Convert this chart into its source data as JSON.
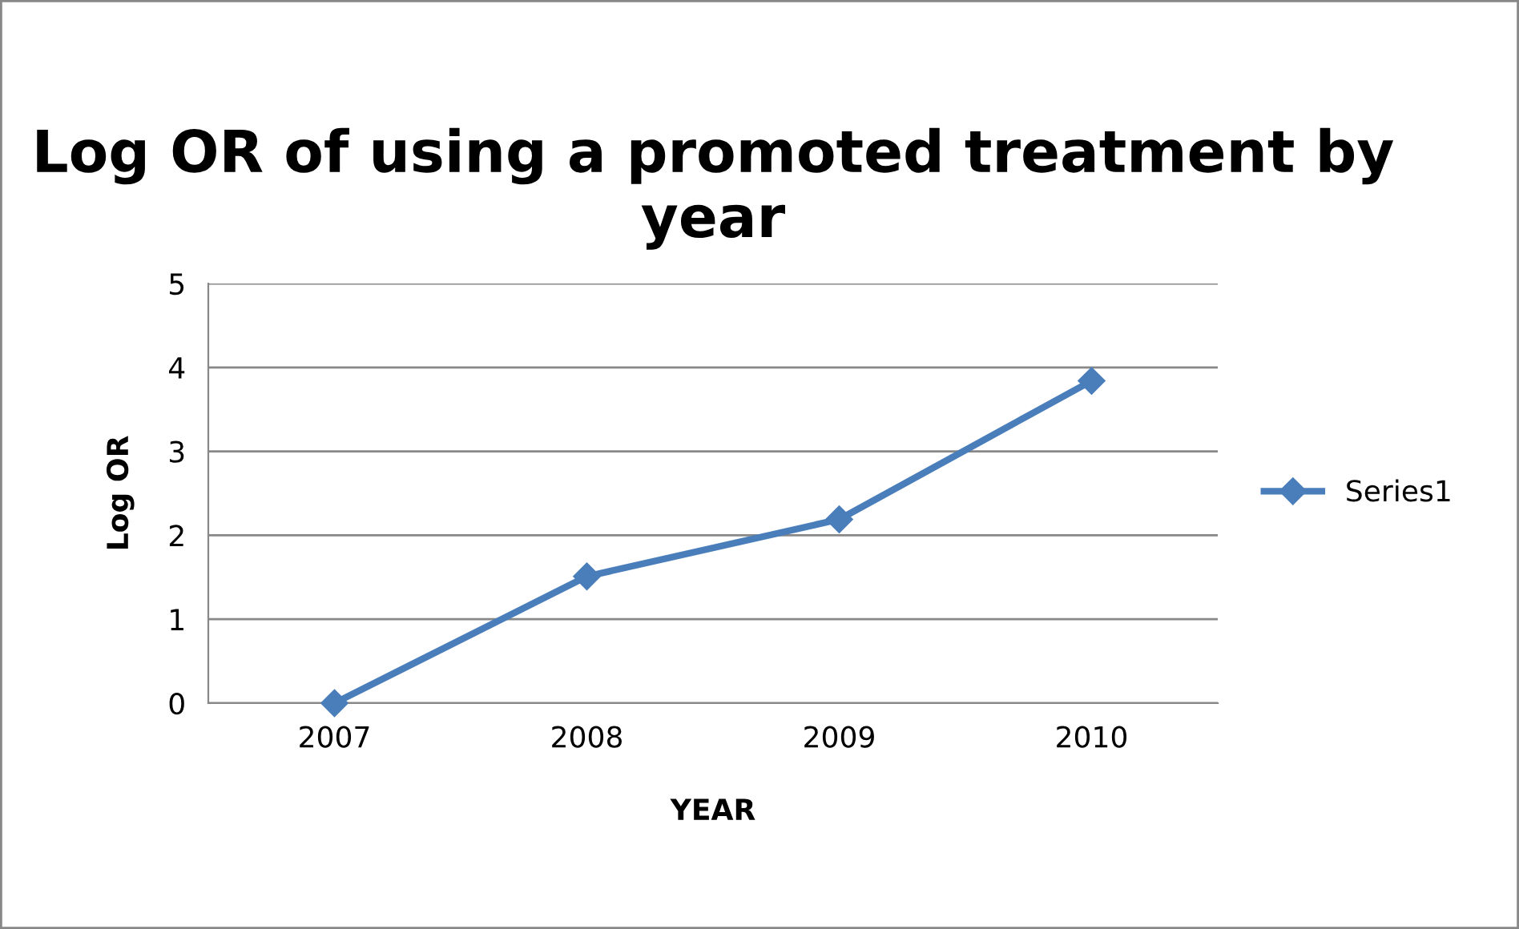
{
  "chart_data": {
    "type": "line",
    "title": "Log OR of using a promoted treatment by year",
    "xlabel": "YEAR",
    "ylabel": "Log OR",
    "categories": [
      "2007",
      "2008",
      "2009",
      "2010"
    ],
    "series": [
      {
        "name": "Series1",
        "color": "#4a7ebb",
        "values": [
          0,
          1.51,
          2.19,
          3.84
        ]
      }
    ],
    "ylim": [
      0,
      5
    ],
    "yticks": [
      0,
      1,
      2,
      3,
      4,
      5
    ],
    "grid": "y",
    "legend": "right",
    "marker": "diamond",
    "line_style": "solid"
  }
}
